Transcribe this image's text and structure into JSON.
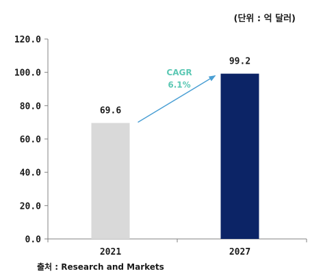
{
  "unit_note": "(단위 : 억 달러)",
  "source_note": "출처 : Research and Markets",
  "annotation": {
    "line1": "CAGR",
    "line2": "6.1%",
    "color": "#5cc8b4",
    "arrow_color": "#4a9fd4"
  },
  "colors": {
    "bar_2021": "#d9d9d9",
    "bar_2027": "#0c2466",
    "axis": "#808080"
  },
  "chart_data": {
    "type": "bar",
    "categories": [
      "2021",
      "2027"
    ],
    "values": [
      69.6,
      99.2
    ],
    "value_labels": [
      "69.6",
      "99.2"
    ],
    "yticks": [
      0,
      20,
      40,
      60,
      80,
      100,
      120
    ],
    "ytick_labels": [
      "0.0",
      "20.0",
      "40.0",
      "60.0",
      "80.0",
      "100.0",
      "120.0"
    ],
    "ylim": [
      0,
      120
    ],
    "grid": false,
    "legend": "none"
  }
}
